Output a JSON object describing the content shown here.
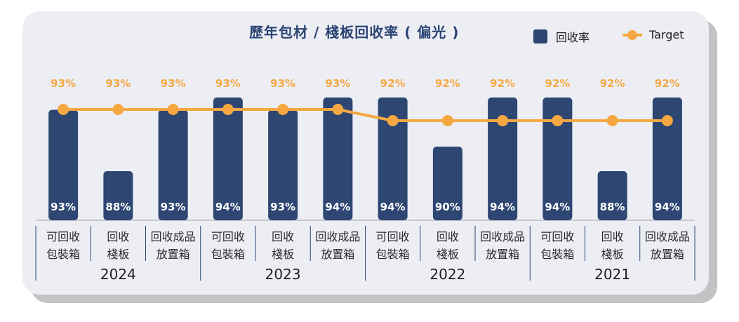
{
  "chart_data": {
    "type": "bar",
    "title": "歷年包材 / 棧板回收率 ( 偏光 )",
    "categories": [
      [
        "可回收",
        "包裝箱"
      ],
      [
        "回收",
        "棧板"
      ],
      [
        "回收成品",
        "放置箱"
      ],
      [
        "可回收",
        "包裝箱"
      ],
      [
        "回收",
        "棧板"
      ],
      [
        "回收成品",
        "放置箱"
      ],
      [
        "可回收",
        "包裝箱"
      ],
      [
        "回收",
        "棧板"
      ],
      [
        "回收成品",
        "放置箱"
      ],
      [
        "可回收",
        "包裝箱"
      ],
      [
        "回收",
        "棧板"
      ],
      [
        "回收成品",
        "放置箱"
      ]
    ],
    "groups": [
      "2024",
      "2023",
      "2022",
      "2021"
    ],
    "series": [
      {
        "name": "回收率",
        "type": "bar",
        "color": "#2d4672",
        "values": [
          93,
          88,
          93,
          94,
          93,
          94,
          94,
          90,
          94,
          94,
          88,
          94
        ],
        "labels": [
          "93%",
          "88%",
          "93%",
          "94%",
          "93%",
          "94%",
          "94%",
          "90%",
          "94%",
          "94%",
          "88%",
          "94%"
        ]
      },
      {
        "name": "Target",
        "type": "line",
        "color": "#f5a842",
        "values": [
          93,
          93,
          93,
          93,
          93,
          93,
          92,
          92,
          92,
          92,
          92,
          92
        ],
        "labels": [
          "93%",
          "93%",
          "93%",
          "93%",
          "93%",
          "93%",
          "92%",
          "92%",
          "92%",
          "92%",
          "92%",
          "92%"
        ]
      }
    ],
    "legend_position": "top-right"
  }
}
